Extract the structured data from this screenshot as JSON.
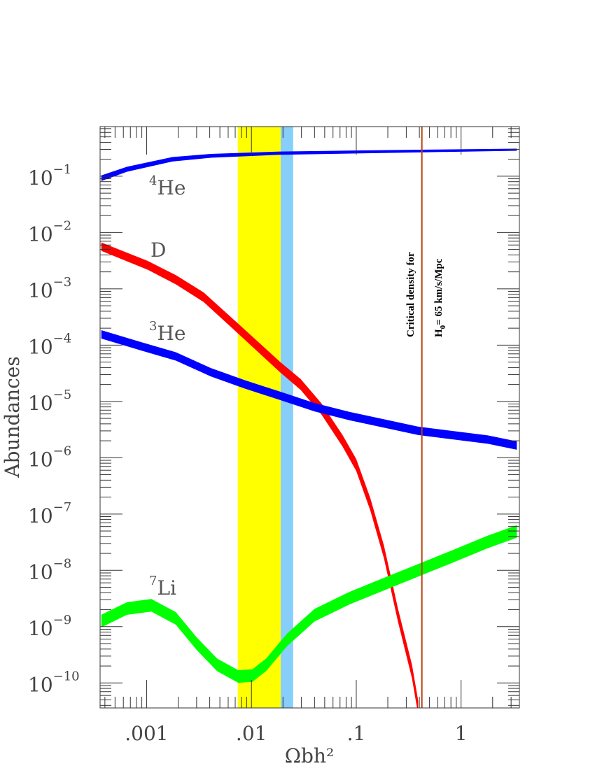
{
  "chart_data": {
    "type": "line",
    "xlabel": "Ωbh²",
    "ylabel": "Abundances",
    "xscale": "log",
    "yscale": "log",
    "xlim": [
      0.00036,
      3.6
    ],
    "ylim": [
      3.6e-11,
      0.76
    ],
    "x_ticks": [
      {
        "value": 0.001,
        "label": ".001"
      },
      {
        "value": 0.01,
        "label": ".01"
      },
      {
        "value": 0.1,
        "label": ".1"
      },
      {
        "value": 1,
        "label": "1"
      }
    ],
    "y_ticks": [
      {
        "value": 0.1,
        "base": "10",
        "exp": "−1"
      },
      {
        "value": 0.01,
        "base": "10",
        "exp": "−2"
      },
      {
        "value": 0.001,
        "base": "10",
        "exp": "−3"
      },
      {
        "value": 0.0001,
        "base": "10",
        "exp": "−4"
      },
      {
        "value": 1e-05,
        "base": "10",
        "exp": "−5"
      },
      {
        "value": 1e-06,
        "base": "10",
        "exp": "−6"
      },
      {
        "value": 1e-07,
        "base": "10",
        "exp": "−7"
      },
      {
        "value": 1e-08,
        "base": "10",
        "exp": "−8"
      },
      {
        "value": 1e-09,
        "base": "10",
        "exp": "−9"
      },
      {
        "value": 1e-10,
        "base": "10",
        "exp": "−10"
      }
    ],
    "grid": false,
    "series": [
      {
        "name": "4He",
        "label_sup": "4",
        "label_main": "He",
        "color": "#0000ff",
        "x": [
          0.00037,
          0.00065,
          0.00176,
          0.0041,
          0.0187,
          0.39,
          3.4
        ],
        "y": [
          0.092,
          0.133,
          0.2,
          0.23,
          0.257,
          0.28,
          0.296
        ]
      },
      {
        "name": "D",
        "label_sup": "",
        "label_main": "D",
        "color": "#ff0000",
        "x": [
          0.00037,
          0.00103,
          0.0019,
          0.0035,
          0.0075,
          0.0187,
          0.0295,
          0.0467,
          0.074,
          0.1,
          0.136,
          0.184,
          0.25,
          0.34,
          0.39
        ],
        "y": [
          0.0056,
          0.0026,
          0.00145,
          0.00071,
          0.000195,
          4.1e-05,
          2e-05,
          7.3e-06,
          2e-06,
          7.4e-07,
          1.5e-07,
          2.1e-08,
          1.6e-09,
          1.6e-10,
          3.6e-11
        ]
      },
      {
        "name": "3He",
        "label_sup": "3",
        "label_main": "He",
        "color": "#0000ff",
        "x": [
          0.00037,
          0.00089,
          0.0019,
          0.0041,
          0.0087,
          0.0187,
          0.04,
          0.086,
          0.39,
          1.8,
          3.4
        ],
        "y": [
          0.000155,
          9.5e-05,
          6.3e-05,
          3.3e-05,
          2e-05,
          1.26e-05,
          7.9e-06,
          5.5e-06,
          3e-06,
          2.1e-06,
          1.65e-06
        ]
      },
      {
        "name": "7Li",
        "label_sup": "7",
        "label_main": "Li",
        "color": "#00ff00",
        "x": [
          0.00037,
          0.00065,
          0.00111,
          0.0019,
          0.003,
          0.0047,
          0.0075,
          0.0102,
          0.0138,
          0.0218,
          0.04,
          0.086,
          0.184,
          0.39,
          0.85,
          1.8,
          3.4
        ],
        "y": [
          1.26e-09,
          2.1e-09,
          2.4e-09,
          1.4e-09,
          5e-10,
          2.1e-10,
          1.3e-10,
          1.35e-10,
          2.1e-10,
          5.8e-10,
          1.6e-09,
          3.2e-09,
          5.7e-09,
          1e-08,
          1.8e-08,
          3.2e-08,
          4.9e-08
        ]
      }
    ],
    "bands": [
      {
        "x_range": [
          0.0074,
          0.019
        ],
        "color": "#ffff00"
      },
      {
        "x_range": [
          0.019,
          0.025
        ],
        "color": "#87cefa"
      }
    ],
    "vline": {
      "x": 0.4225,
      "color": "#b5420f",
      "annotation_line1": "Critical density for",
      "annotation_line2_main": "H",
      "annotation_line2_sub": "0",
      "annotation_line2_rest": "= 65  km/s/Mpc"
    }
  }
}
